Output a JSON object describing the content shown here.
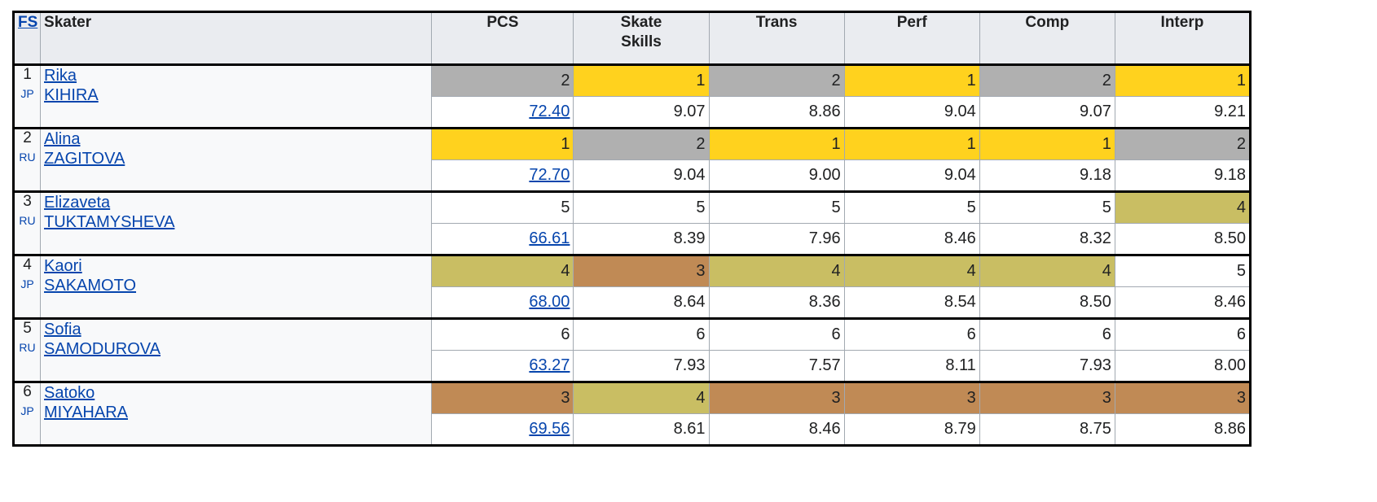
{
  "header": {
    "fs": "FS",
    "skater": "Skater",
    "pcs": "PCS",
    "skate_skills_1": "Skate",
    "skate_skills_2": "Skills",
    "trans": "Trans",
    "perf": "Perf",
    "comp": "Comp",
    "interp": "Interp"
  },
  "colors": {
    "gold": "#ffd21e",
    "silver": "#b0b0b0",
    "bronze": "#c08a55",
    "fourth": "#c9be63",
    "header_bg": "#eaecf0",
    "link": "#0645ad"
  },
  "rows": [
    {
      "rank": "1",
      "nation": "JP",
      "first": "Rika",
      "last": "KIHIRA",
      "ranks": [
        "2",
        "1",
        "2",
        "1",
        "2",
        "1"
      ],
      "scores": [
        "72.40",
        "9.07",
        "8.86",
        "9.04",
        "9.07",
        "9.21"
      ]
    },
    {
      "rank": "2",
      "nation": "RU",
      "first": "Alina",
      "last": "ZAGITOVA",
      "ranks": [
        "1",
        "2",
        "1",
        "1",
        "1",
        "2"
      ],
      "scores": [
        "72.70",
        "9.04",
        "9.00",
        "9.04",
        "9.18",
        "9.18"
      ]
    },
    {
      "rank": "3",
      "nation": "RU",
      "first": "Elizaveta",
      "last": "TUKTAMYSHEVA",
      "ranks": [
        "5",
        "5",
        "5",
        "5",
        "5",
        "4"
      ],
      "scores": [
        "66.61",
        "8.39",
        "7.96",
        "8.46",
        "8.32",
        "8.50"
      ]
    },
    {
      "rank": "4",
      "nation": "JP",
      "first": "Kaori",
      "last": "SAKAMOTO",
      "ranks": [
        "4",
        "3",
        "4",
        "4",
        "4",
        "5"
      ],
      "scores": [
        "68.00",
        "8.64",
        "8.36",
        "8.54",
        "8.50",
        "8.46"
      ]
    },
    {
      "rank": "5",
      "nation": "RU",
      "first": "Sofia",
      "last": "SAMODUROVA",
      "ranks": [
        "6",
        "6",
        "6",
        "6",
        "6",
        "6"
      ],
      "scores": [
        "63.27",
        "7.93",
        "7.57",
        "8.11",
        "7.93",
        "8.00"
      ]
    },
    {
      "rank": "6",
      "nation": "JP",
      "first": "Satoko",
      "last": "MIYAHARA",
      "ranks": [
        "3",
        "4",
        "3",
        "3",
        "3",
        "3"
      ],
      "scores": [
        "69.56",
        "8.61",
        "8.46",
        "8.79",
        "8.75",
        "8.86"
      ]
    }
  ]
}
